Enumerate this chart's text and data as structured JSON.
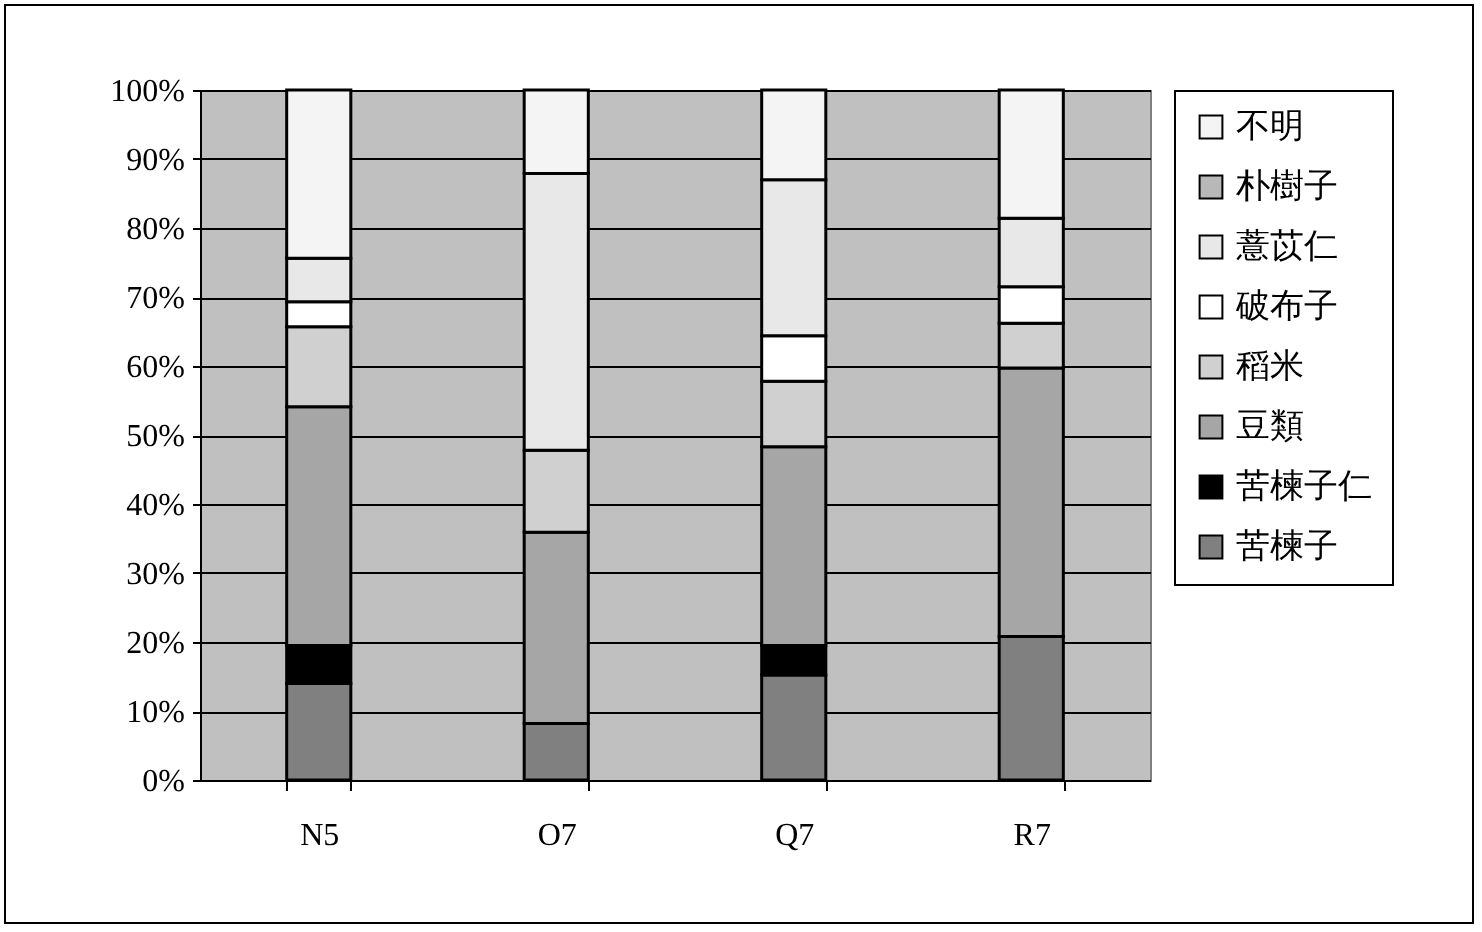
{
  "chart_data": {
    "type": "bar",
    "stacked": true,
    "categories": [
      "N5",
      "O7",
      "Q7",
      "R7"
    ],
    "series": [
      {
        "name": "苦楝子",
        "color": "#808080",
        "values": [
          14.0,
          8.2,
          15.2,
          20.8
        ]
      },
      {
        "name": "苦楝子仁",
        "color": "#000000",
        "values": [
          5.5,
          0,
          4.3,
          0
        ]
      },
      {
        "name": "豆類",
        "color": "#a6a6a6",
        "values": [
          34.6,
          27.7,
          28.8,
          38.9
        ]
      },
      {
        "name": "稻米",
        "color": "#d0d0d0",
        "values": [
          11.6,
          11.9,
          9.5,
          6.5
        ]
      },
      {
        "name": "破布子",
        "color": "#ffffff",
        "values": [
          3.6,
          0,
          6.6,
          5.3
        ]
      },
      {
        "name": "薏苡仁",
        "color": "#e8e8e8",
        "values": [
          6.3,
          40.1,
          22.6,
          9.9
        ]
      },
      {
        "name": "朴樹子",
        "color": "#b8b8b8",
        "values": [
          0,
          0,
          0,
          0
        ]
      },
      {
        "name": "不明",
        "color": "#f4f4f4",
        "values": [
          24.4,
          12.1,
          13.0,
          18.6
        ]
      }
    ],
    "ylim": [
      0,
      100
    ],
    "yticks": [
      {
        "value": 0,
        "label": "0%"
      },
      {
        "value": 10,
        "label": "10%"
      },
      {
        "value": 20,
        "label": "20%"
      },
      {
        "value": 30,
        "label": "30%"
      },
      {
        "value": 40,
        "label": "40%"
      },
      {
        "value": 50,
        "label": "50%"
      },
      {
        "value": 60,
        "label": "60%"
      },
      {
        "value": 70,
        "label": "70%"
      },
      {
        "value": 80,
        "label": "80%"
      },
      {
        "value": 90,
        "label": "90%"
      },
      {
        "value": 100,
        "label": "100%"
      }
    ],
    "grid": "y",
    "legend": "right"
  }
}
